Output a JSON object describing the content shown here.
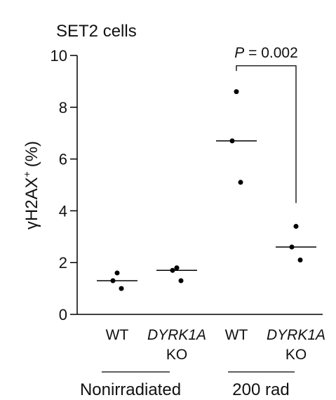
{
  "chart_data": {
    "type": "scatter",
    "title": "SET2 cells",
    "ylabel_base": "γH2AX",
    "ylabel_sup": "+",
    "ylabel_unit": "(%)",
    "ylim": [
      0,
      10
    ],
    "yticks": [
      "0",
      "2",
      "4",
      "6",
      "8",
      "10"
    ],
    "grid": false,
    "legend": "none",
    "groups": [
      {
        "label_top": "WT",
        "label_top_italic": false,
        "label_bottom": "",
        "condition": "Nonirradiated",
        "points": [
          1.6,
          1.3,
          1.0
        ],
        "median": 1.3
      },
      {
        "label_top": "DYRK1A",
        "label_top_italic": true,
        "label_bottom": "KO",
        "condition": "Nonirradiated",
        "points": [
          1.8,
          1.7,
          1.3
        ],
        "median": 1.7
      },
      {
        "label_top": "WT",
        "label_top_italic": false,
        "label_bottom": "",
        "condition": "200 rad",
        "points": [
          8.6,
          6.7,
          5.1
        ],
        "median": 6.7
      },
      {
        "label_top": "DYRK1A",
        "label_top_italic": true,
        "label_bottom": "KO",
        "condition": "200 rad",
        "points": [
          3.4,
          2.6,
          2.1
        ],
        "median": 2.6
      }
    ],
    "conditions": [
      "Nonirradiated",
      "200 rad"
    ],
    "annotation": {
      "p_letter": "P",
      "p_rest": " = 0.002",
      "between_groups": [
        2,
        3
      ],
      "bracket_y": 9.6,
      "left_end": 9.4,
      "right_end": 4.3
    },
    "colors": {
      "points": "#000000",
      "lines": "#000000",
      "text": "#111111"
    }
  }
}
